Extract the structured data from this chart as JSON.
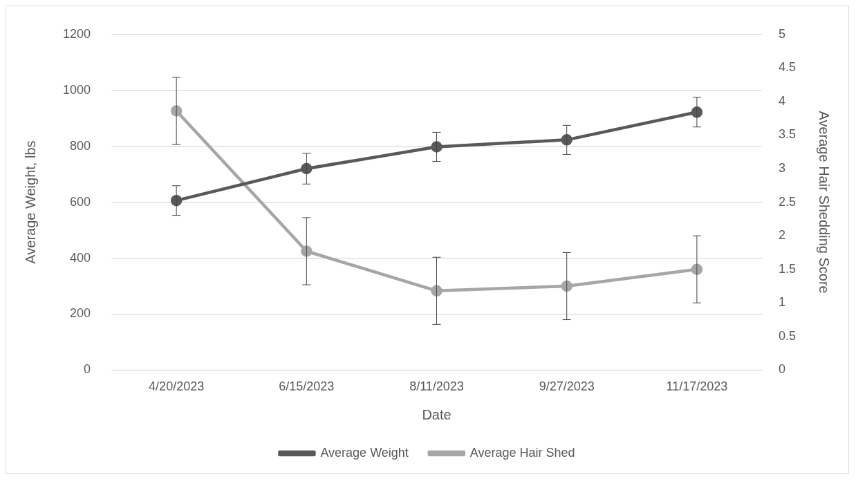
{
  "chart_data": {
    "type": "line",
    "xlabel": "Date",
    "ylabel": "Average Weight, lbs",
    "y2label": "Average Hair Shedding Score",
    "categories": [
      "4/20/2023",
      "6/15/2023",
      "8/11/2023",
      "9/27/2023",
      "11/17/2023"
    ],
    "series": [
      {
        "name": "Average Weight",
        "color": "#595959",
        "values": [
          606,
          720,
          798,
          823,
          922
        ],
        "errors": [
          53,
          55,
          52,
          52,
          53
        ]
      },
      {
        "name": "Average Hair Shed",
        "color": "#a6a6a6",
        "axis": "y2",
        "values": [
          3.86,
          1.77,
          1.18,
          1.25,
          1.5
        ],
        "errors": [
          0.5,
          0.5,
          0.5,
          0.5,
          0.5
        ]
      }
    ],
    "ylim": [
      0,
      1200
    ],
    "yticks": [
      0,
      200,
      400,
      600,
      800,
      1000,
      1200
    ],
    "y2lim": [
      0,
      5
    ],
    "y2ticks": [
      0,
      0.5,
      1,
      1.5,
      2,
      2.5,
      3,
      3.5,
      4,
      4.5,
      5
    ],
    "grid": "y",
    "legend": "bottom",
    "marker": "circle",
    "line_style": "solid"
  }
}
